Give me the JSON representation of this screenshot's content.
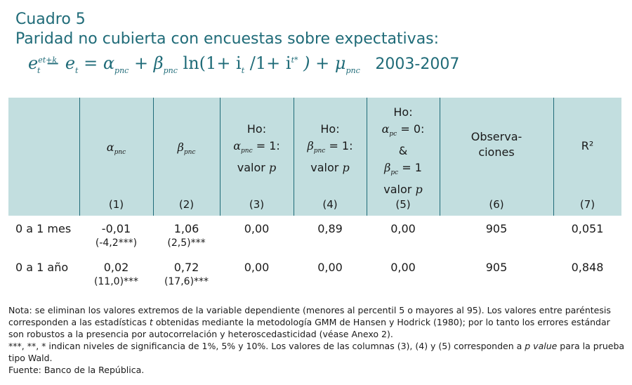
{
  "title": {
    "cuadro": "Cuadro 5",
    "subtitle": "Paridad no cubierta con encuestas sobre expectativas:",
    "formula_lhs": "e",
    "formula_sup": "et+k",
    "formula_sub_t": "t",
    "formula_mid": "− e",
    "formula_eq": "= α",
    "formula_pnc": "pnc",
    "formula_beta": "+ β",
    "formula_ln": "ln(1+ i",
    "formula_div": "/1+ i",
    "formula_sup_star": "t*",
    "formula_mu": ") + μ",
    "period": "2003-2007"
  },
  "header": {
    "alpha": "α",
    "beta": "β",
    "pnc": "pnc",
    "pc": "pc",
    "ho": "Ho:",
    "eq1": "= 1:",
    "eq0": "= 0:",
    "amp": "&",
    "eq_one": "= 1",
    "valor": "valor",
    "p": "p",
    "obs_line1": "Observa-",
    "obs_line2": "ciones",
    "r2": "R²",
    "colnums": [
      "(1)",
      "(2)",
      "(3)",
      "(4)",
      "(5)",
      "(6)",
      "(7)"
    ]
  },
  "rows": [
    {
      "label": "0 a 1 mes",
      "alpha": "-0,01",
      "alpha_se": "(-4,2***)",
      "beta": "1,06",
      "beta_se": "(2,5)***",
      "c3": "0,00",
      "c4": "0,89",
      "c5": "0,00",
      "obs": "905",
      "r2": "0,051"
    },
    {
      "label": "0 a 1 año",
      "alpha": "0,02",
      "alpha_se": "(11,0)***",
      "beta": "0,72",
      "beta_se": "(17,6)***",
      "c3": "0,00",
      "c4": "0,00",
      "c5": "0,00",
      "obs": "905",
      "r2": "0,848"
    }
  ],
  "notes": {
    "nota_prefix": "Nota: se eliminan los valores extremos de la variable dependiente (menores al percentil 5 o mayores al 95). Los valores entre paréntesis corresponden a las estadísticas ",
    "nota_t": "t",
    "nota_suffix": " obtenidas mediante la metodología GMM de Hansen y Hodrick (1980); por lo tanto los errores estándar son robustos a la presencia por autocorrelación y heteroscedasticidad (véase Anexo 2).",
    "sig_prefix": "***, **, * indican niveles de significancia de 1%, 5% y 10%. Los valores de las columnas (3), (4) y (5) corresponden a ",
    "sig_pvalue": "p value",
    "sig_suffix": " para la prueba tipo Wald.",
    "fuente": "Fuente: Banco de la República."
  },
  "colors": {
    "accent": "#1f6b78",
    "header_bg": "#c2dedf"
  }
}
